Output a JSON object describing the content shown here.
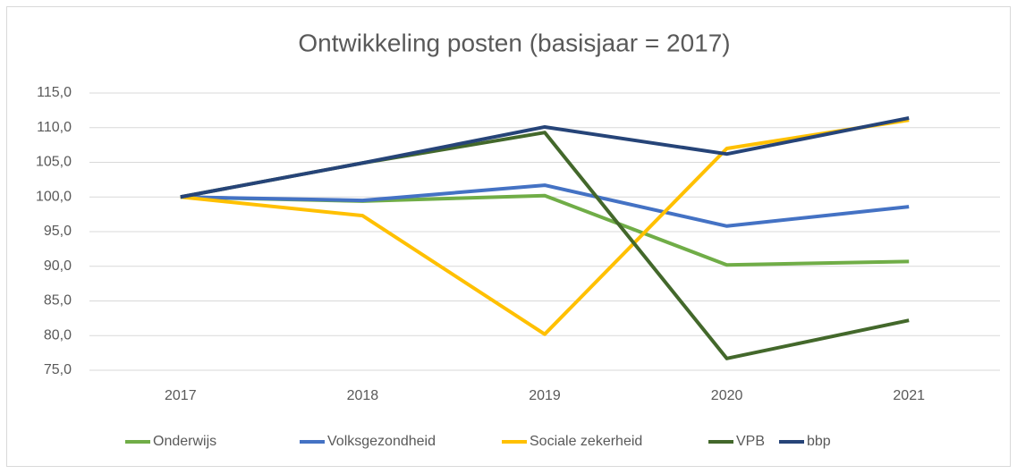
{
  "chart_data": {
    "type": "line",
    "title": "Ontwikkeling posten (basisjaar = 2017)",
    "categories": [
      "2017",
      "2018",
      "2019",
      "2020",
      "2021"
    ],
    "series": [
      {
        "name": "Onderwijs",
        "color": "#70ad47",
        "values": [
          100,
          99.4,
          100.2,
          90.2,
          90.7
        ]
      },
      {
        "name": "Volksgezondheid",
        "color": "#4472c4",
        "values": [
          100,
          99.5,
          101.7,
          95.8,
          98.6
        ]
      },
      {
        "name": "Sociale zekerheid",
        "color": "#ffc000",
        "values": [
          100,
          97.3,
          80.2,
          107.0,
          111.1
        ]
      },
      {
        "name": "VPB",
        "color": "#43682b",
        "values": [
          100,
          104.9,
          109.3,
          76.7,
          82.2
        ]
      },
      {
        "name": "bbp",
        "color": "#264478",
        "values": [
          100,
          104.9,
          110.1,
          106.2,
          111.4
        ]
      }
    ],
    "ylim": [
      75,
      115
    ],
    "yticks": [
      {
        "value": 75,
        "label": "75,0"
      },
      {
        "value": 80,
        "label": "80,0"
      },
      {
        "value": 85,
        "label": "85,0"
      },
      {
        "value": 90,
        "label": "90,0"
      },
      {
        "value": 95,
        "label": "95,0"
      },
      {
        "value": 100,
        "label": "100,0"
      },
      {
        "value": 105,
        "label": "105,0"
      },
      {
        "value": 110,
        "label": "110,0"
      },
      {
        "value": 115,
        "label": "115,0"
      }
    ],
    "grid": true,
    "legend": "bottom"
  }
}
